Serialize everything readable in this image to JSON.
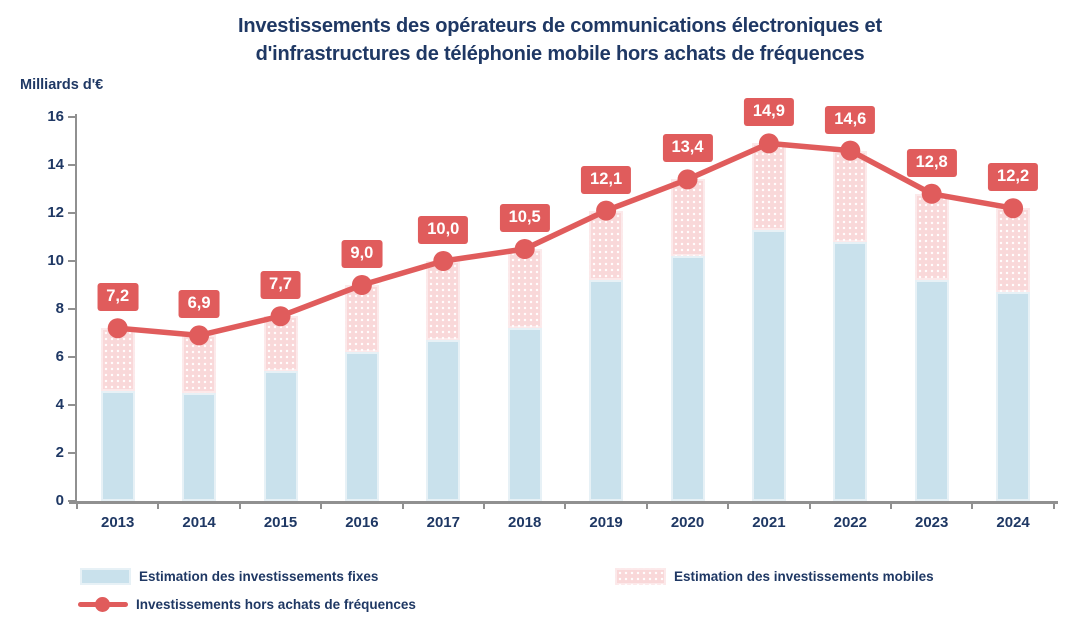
{
  "title": {
    "line1": "Investissements des opérateurs de communications électroniques et",
    "line2": "d'infrastructures de téléphonie mobile hors achats de fréquences"
  },
  "colors": {
    "title_text": "#1F3864",
    "axis_text": "#1F3864",
    "axis_line": "#909090",
    "fixed_bar": "#C9E1EC",
    "mobile_bar": "#F9D8D9",
    "line": "#E05C5C",
    "value_label_bg": "#E05C5C",
    "value_label_text": "#FFFFFF"
  },
  "chart_data": {
    "type": "stacked-bar+line",
    "title": "Investissements des opérateurs de communications électroniques et d'infrastructures de téléphonie mobile hors achats de fréquences",
    "ylabel": "Milliards d'€",
    "xlabel": "",
    "ylim": [
      0,
      16
    ],
    "ytick_step": 2,
    "grid": false,
    "legend_position": "bottom",
    "categories": [
      "2013",
      "2014",
      "2015",
      "2016",
      "2017",
      "2018",
      "2019",
      "2020",
      "2021",
      "2022",
      "2023",
      "2024"
    ],
    "series": [
      {
        "name": "Estimation des investissements fixes",
        "type": "bar",
        "stack": true,
        "color": "#C9E1EC",
        "values": [
          4.6,
          4.5,
          5.4,
          6.2,
          6.7,
          7.2,
          9.2,
          10.2,
          11.3,
          10.8,
          9.2,
          8.7
        ]
      },
      {
        "name": "Estimation des investissements mobiles",
        "type": "bar",
        "stack": true,
        "color": "#F9D8D9",
        "values": [
          2.6,
          2.4,
          2.3,
          2.8,
          3.3,
          3.3,
          2.9,
          3.2,
          3.6,
          3.8,
          3.6,
          3.5
        ]
      },
      {
        "name": "Investissements hors achats de fréquences",
        "type": "line",
        "color": "#E05C5C",
        "values": [
          7.2,
          6.9,
          7.7,
          9.0,
          10.0,
          10.5,
          12.1,
          13.4,
          14.9,
          14.6,
          12.8,
          12.2
        ],
        "labels": [
          "7,2",
          "6,9",
          "7,7",
          "9,0",
          "10,0",
          "10,5",
          "12,1",
          "13,4",
          "14,9",
          "14,6",
          "12,8",
          "12,2"
        ]
      }
    ]
  }
}
